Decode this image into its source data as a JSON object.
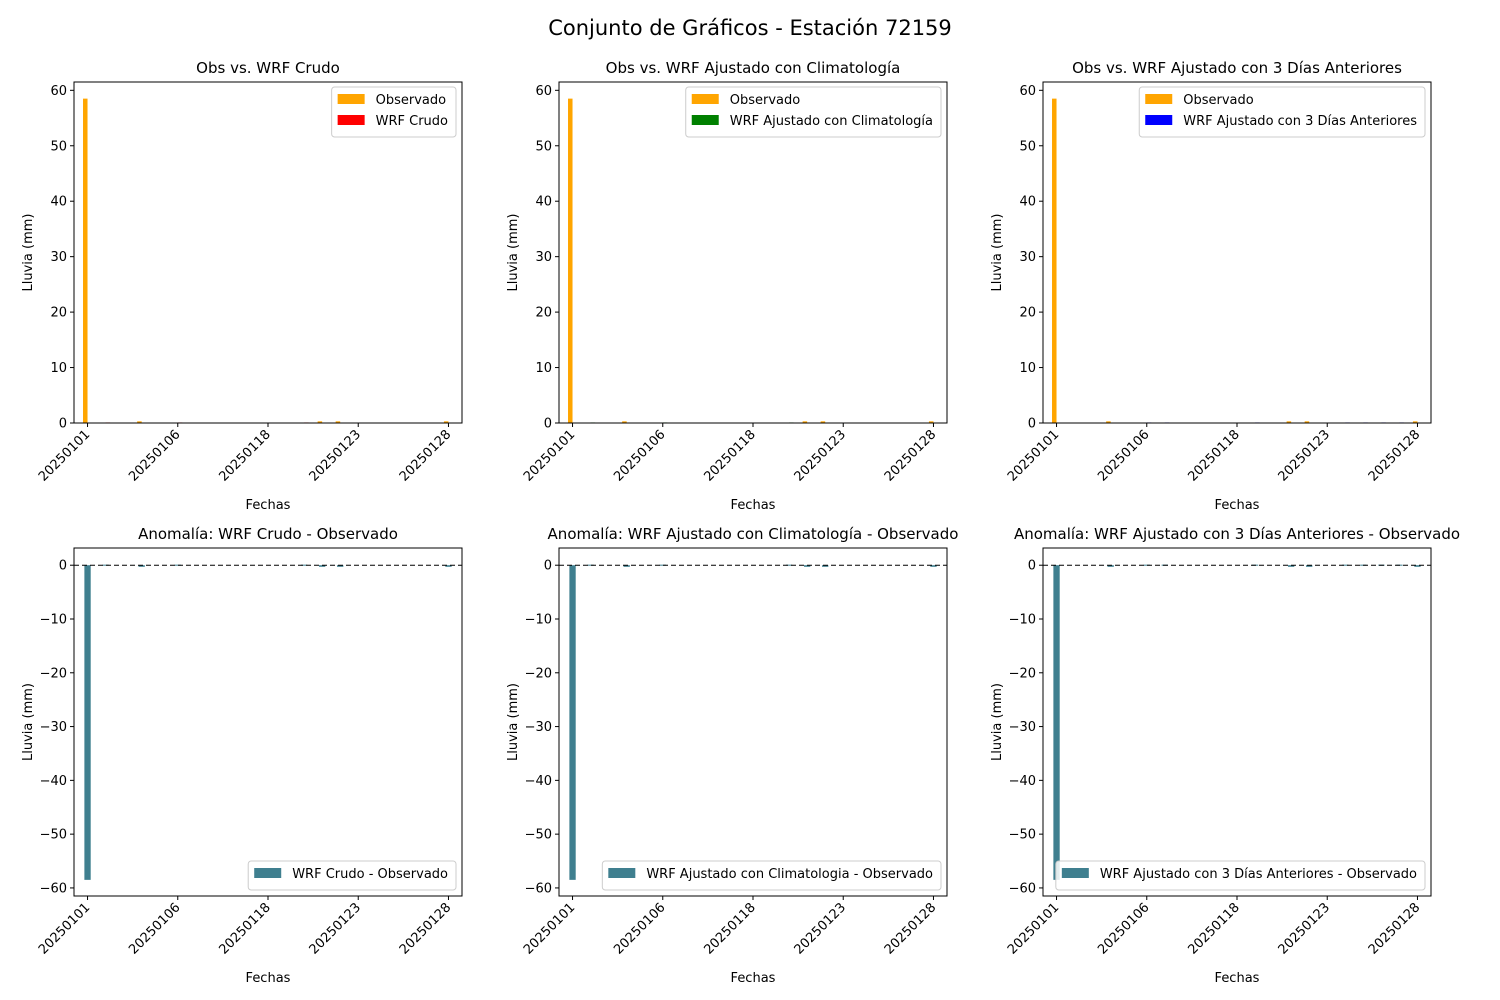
{
  "figure": {
    "title": "Conjunto de Gráficos - Estación 72159"
  },
  "colors": {
    "observado": "#ffa500",
    "wrf_crudo": "#ff0000",
    "wrf_clima": "#008000",
    "wrf_3dias": "#0000ff",
    "anomalia": "#3f7f8f",
    "zero_line": "#000000"
  },
  "chart_data": [
    {
      "id": "obs-vs-crudo",
      "type": "bar",
      "title": "Obs vs. WRF Crudo",
      "xlabel": "Fechas",
      "ylabel": "Lluvia (mm)",
      "ylim": [
        0,
        61.5
      ],
      "yticks": [
        0,
        10,
        20,
        30,
        40,
        50,
        60
      ],
      "x_tick_labels": [
        "20250101",
        "20250106",
        "20250118",
        "20250123",
        "20250128"
      ],
      "x_tick_index": [
        0,
        5,
        10,
        15,
        20
      ],
      "legend_position": "top-right",
      "series": [
        {
          "name": "Observado",
          "color_key": "observado",
          "values": [
            58.5,
            0,
            0,
            0.3,
            0,
            0,
            0,
            0,
            0,
            0,
            0,
            0,
            0,
            0.3,
            0.3,
            0,
            0,
            0,
            0,
            0,
            0.3
          ]
        },
        {
          "name": "WRF Crudo",
          "color_key": "wrf_crudo",
          "values": [
            0,
            0.1,
            0,
            0,
            0,
            0.1,
            0,
            0,
            0,
            0,
            0,
            0,
            0.1,
            0,
            0,
            0,
            0,
            0,
            0,
            0,
            0
          ]
        }
      ]
    },
    {
      "id": "obs-vs-clima",
      "type": "bar",
      "title": "Obs vs. WRF Ajustado con Climatología",
      "xlabel": "Fechas",
      "ylabel": "Lluvia (mm)",
      "ylim": [
        0,
        61.5
      ],
      "yticks": [
        0,
        10,
        20,
        30,
        40,
        50,
        60
      ],
      "x_tick_labels": [
        "20250101",
        "20250106",
        "20250118",
        "20250123",
        "20250128"
      ],
      "x_tick_index": [
        0,
        5,
        10,
        15,
        20
      ],
      "legend_position": "top-right",
      "series": [
        {
          "name": "Observado",
          "color_key": "observado",
          "values": [
            58.5,
            0,
            0,
            0.3,
            0,
            0,
            0,
            0,
            0,
            0,
            0,
            0,
            0,
            0.3,
            0.3,
            0,
            0,
            0,
            0,
            0,
            0.3
          ]
        },
        {
          "name": "WRF Ajustado con Climatología",
          "color_key": "wrf_clima",
          "values": [
            0,
            0.1,
            0,
            0,
            0,
            0.1,
            0,
            0,
            0,
            0,
            0,
            0,
            0.1,
            0,
            0,
            0,
            0,
            0,
            0,
            0,
            0
          ]
        }
      ]
    },
    {
      "id": "obs-vs-3dias",
      "type": "bar",
      "title": "Obs vs. WRF Ajustado con 3 Días Anteriores",
      "xlabel": "Fechas",
      "ylabel": "Lluvia (mm)",
      "ylim": [
        0,
        61.5
      ],
      "yticks": [
        0,
        10,
        20,
        30,
        40,
        50,
        60
      ],
      "x_tick_labels": [
        "20250101",
        "20250106",
        "20250118",
        "20250123",
        "20250128"
      ],
      "x_tick_index": [
        0,
        5,
        10,
        15,
        20
      ],
      "legend_position": "top-right",
      "series": [
        {
          "name": "Observado",
          "color_key": "observado",
          "values": [
            58.5,
            0,
            0,
            0.3,
            0,
            0,
            0,
            0,
            0,
            0,
            0,
            0,
            0,
            0.3,
            0.3,
            0,
            0,
            0,
            0,
            0,
            0.3
          ]
        },
        {
          "name": "WRF Ajustado con 3 Días Anteriores",
          "color_key": "wrf_3dias",
          "values": [
            0,
            0,
            0,
            0,
            0,
            0.1,
            0.1,
            0,
            0,
            0,
            0,
            0.1,
            0,
            0,
            0,
            0,
            0.1,
            0.1,
            0.1,
            0.1,
            0
          ]
        }
      ]
    },
    {
      "id": "anom-crudo",
      "type": "bar",
      "title": "Anomalía: WRF Crudo - Observado",
      "xlabel": "Fechas",
      "ylabel": "Lluvia (mm)",
      "ylim": [
        -61.5,
        3.2
      ],
      "yticks": [
        0,
        -10,
        -20,
        -30,
        -40,
        -50,
        -60
      ],
      "x_tick_labels": [
        "20250101",
        "20250106",
        "20250118",
        "20250123",
        "20250128"
      ],
      "x_tick_index": [
        0,
        5,
        10,
        15,
        20
      ],
      "legend_position": "lower-right",
      "zero_line": true,
      "series": [
        {
          "name": "WRF Crudo - Observado",
          "color_key": "anomalia",
          "values": [
            -58.5,
            0.1,
            0,
            -0.3,
            0,
            0.1,
            0,
            0,
            0,
            0,
            0,
            0,
            0.1,
            -0.3,
            -0.3,
            0,
            0,
            0,
            0,
            0,
            -0.3
          ]
        }
      ]
    },
    {
      "id": "anom-clima",
      "type": "bar",
      "title": "Anomalía: WRF Ajustado con Climatología - Observado",
      "xlabel": "Fechas",
      "ylabel": "Lluvia (mm)",
      "ylim": [
        -61.5,
        3.2
      ],
      "yticks": [
        0,
        -10,
        -20,
        -30,
        -40,
        -50,
        -60
      ],
      "x_tick_labels": [
        "20250101",
        "20250106",
        "20250118",
        "20250123",
        "20250128"
      ],
      "x_tick_index": [
        0,
        5,
        10,
        15,
        20
      ],
      "legend_position": "lower-right",
      "zero_line": true,
      "series": [
        {
          "name": "WRF Ajustado con Climatologia - Observado",
          "color_key": "anomalia",
          "values": [
            -58.5,
            0.1,
            0,
            -0.3,
            0,
            0.1,
            0,
            0,
            0,
            0,
            0,
            0,
            0.1,
            -0.3,
            -0.3,
            0,
            0,
            0,
            0,
            0,
            -0.3
          ]
        }
      ]
    },
    {
      "id": "anom-3dias",
      "type": "bar",
      "title": "Anomalía: WRF Ajustado con 3 Días Anteriores - Observado",
      "xlabel": "Fechas",
      "ylabel": "Lluvia (mm)",
      "ylim": [
        -61.5,
        3.2
      ],
      "yticks": [
        0,
        -10,
        -20,
        -30,
        -40,
        -50,
        -60
      ],
      "x_tick_labels": [
        "20250101",
        "20250106",
        "20250118",
        "20250123",
        "20250128"
      ],
      "x_tick_index": [
        0,
        5,
        10,
        15,
        20
      ],
      "legend_position": "lower-right",
      "zero_line": true,
      "series": [
        {
          "name": "WRF Ajustado con 3 Días Anteriores - Observado",
          "color_key": "anomalia",
          "values": [
            -58.5,
            0,
            0,
            -0.3,
            0,
            0.1,
            0.1,
            0,
            0,
            0,
            0,
            0.1,
            0,
            -0.3,
            -0.3,
            0,
            0.1,
            0.1,
            0.1,
            0.1,
            -0.3
          ]
        }
      ]
    }
  ]
}
